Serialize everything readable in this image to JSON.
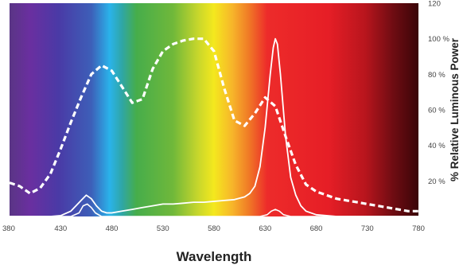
{
  "chart_data": {
    "type": "line",
    "xlabel": "Wavelength",
    "ylabel": "% Relative Luminous Power",
    "xlim": [
      380,
      780
    ],
    "ylim": [
      0,
      120
    ],
    "x_ticks": [
      "380",
      "430",
      "480",
      "530",
      "580",
      "630",
      "680",
      "730",
      "780"
    ],
    "y_ticks": [
      "20 %",
      "40 %",
      "60 %",
      "80 %",
      "100 %",
      "120"
    ],
    "background": "visible spectrum gradient (violet to dark red)",
    "grid": false,
    "legend": "none",
    "series": [
      {
        "style": "dashed",
        "color": "#ffffff",
        "x": [
          380,
          390,
          400,
          410,
          420,
          430,
          440,
          450,
          460,
          470,
          480,
          490,
          500,
          510,
          520,
          530,
          540,
          550,
          560,
          570,
          580,
          590,
          600,
          610,
          620,
          630,
          640,
          650,
          660,
          670,
          680,
          690,
          700,
          710,
          720,
          730,
          740,
          750,
          760,
          770,
          780
        ],
        "y": [
          19,
          17,
          13,
          16,
          24,
          38,
          53,
          67,
          80,
          85,
          82,
          73,
          64,
          66,
          83,
          93,
          97,
          99,
          100,
          100,
          93,
          72,
          54,
          51,
          58,
          67,
          62,
          45,
          29,
          18,
          14,
          12,
          10,
          9,
          8,
          7,
          6,
          5,
          4,
          3,
          3
        ]
      },
      {
        "style": "solid",
        "color": "#ffffff",
        "x": [
          380,
          420,
          430,
          440,
          450,
          455,
          460,
          465,
          470,
          475,
          480,
          490,
          500,
          510,
          520,
          530,
          540,
          550,
          560,
          570,
          580,
          590,
          600,
          610,
          615,
          620,
          625,
          630,
          635,
          638,
          640,
          642,
          645,
          650,
          655,
          660,
          665,
          670,
          680,
          690,
          700,
          780
        ],
        "y": [
          0,
          0,
          0.5,
          3,
          9,
          12,
          10,
          6,
          3,
          2,
          2,
          3,
          4,
          5,
          6,
          7,
          7,
          7.5,
          8,
          8,
          8.5,
          9,
          9.5,
          11,
          13,
          17,
          28,
          50,
          80,
          95,
          100,
          97,
          80,
          45,
          22,
          12,
          6,
          3,
          1,
          0.5,
          0,
          0
        ]
      },
      {
        "style": "solid",
        "color": "#ffffff",
        "x": [
          380,
          440,
          448,
          452,
          456,
          460,
          464,
          470,
          600,
          625,
          632,
          636,
          640,
          644,
          648,
          655,
          780
        ],
        "y": [
          0,
          0,
          2,
          6,
          7,
          5,
          2,
          0,
          0,
          0,
          1,
          3,
          4,
          3,
          1,
          0,
          0
        ]
      }
    ]
  }
}
